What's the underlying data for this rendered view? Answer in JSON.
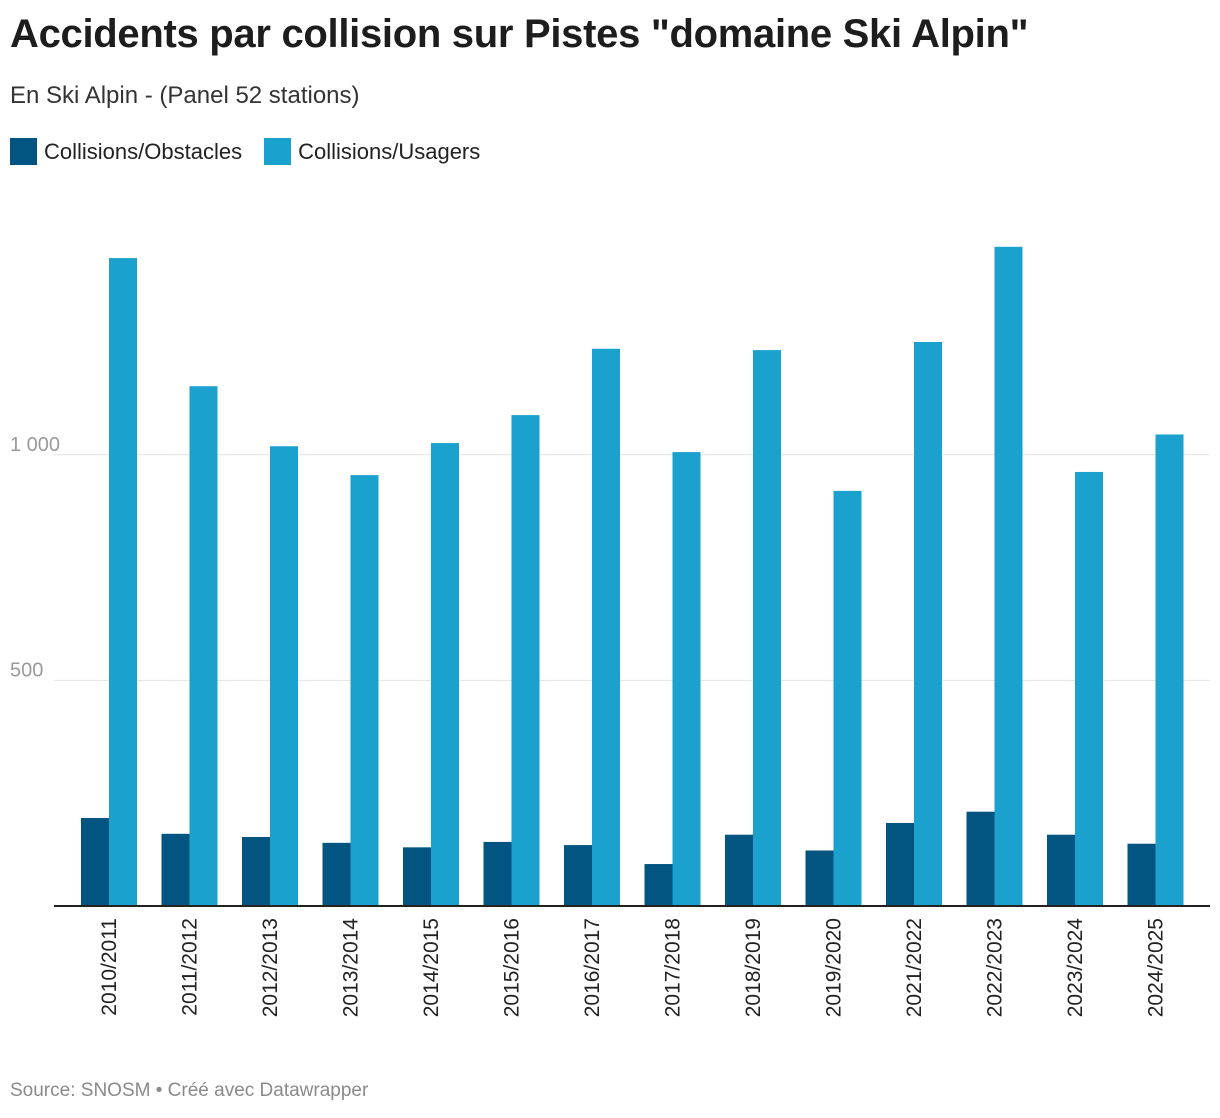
{
  "header": {
    "title": "Accidents par collision sur Pistes \"domaine Ski Alpin\"",
    "subtitle": "En Ski Alpin - (Panel 52 stations)"
  },
  "footer": {
    "source_prefix": "Source: ",
    "source_name": "SNOSM",
    "separator": " • ",
    "credit": "Créé avec Datawrapper"
  },
  "colors": {
    "obstacles": "#035581",
    "usagers": "#1aa1ce",
    "grid": "#e2e2e2",
    "axis": "#222222",
    "tick_text": "#9a9a9a"
  },
  "chart_data": {
    "type": "bar",
    "categories": [
      "2010/2011",
      "2011/2012",
      "2012/2013",
      "2013/2014",
      "2014/2015",
      "2015/2016",
      "2016/2017",
      "2017/2018",
      "2018/2019",
      "2019/2020",
      "2021/2022",
      "2022/2023",
      "2023/2024",
      "2024/2025"
    ],
    "series": [
      {
        "name": "Collisions/Obstacles",
        "values": [
          195,
          160,
          153,
          140,
          130,
          142,
          135,
          93,
          158,
          123,
          184,
          209,
          158,
          138
        ]
      },
      {
        "name": "Collisions/Usagers",
        "values": [
          1436,
          1152,
          1019,
          955,
          1026,
          1088,
          1235,
          1006,
          1232,
          920,
          1250,
          1461,
          962,
          1045
        ]
      }
    ],
    "yticks": [
      {
        "value": 500,
        "label": "500"
      },
      {
        "value": 1000,
        "label": "1 000"
      }
    ],
    "ylim": [
      0,
      1500
    ],
    "grid": true,
    "legend": "top-left"
  }
}
